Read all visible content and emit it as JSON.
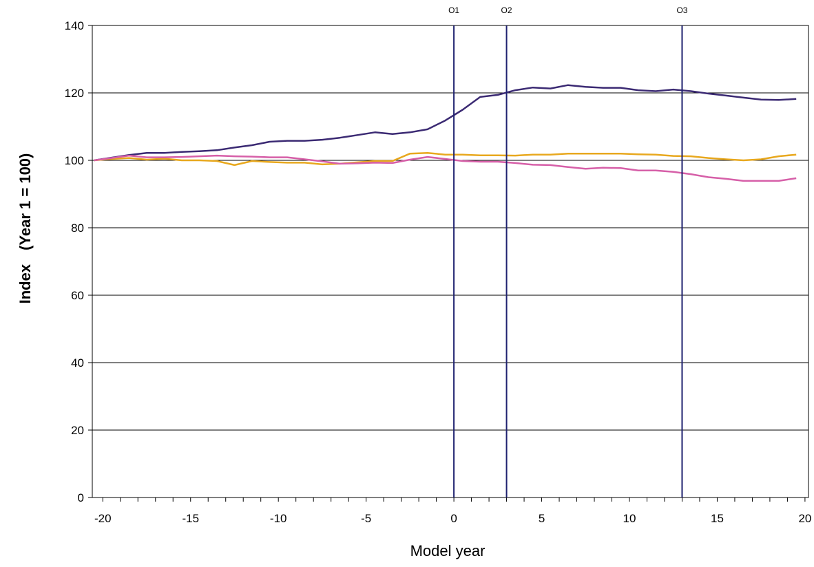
{
  "chart_data": {
    "type": "line",
    "title": "",
    "xlabel": "Model year",
    "ylabel_main": "Index",
    "ylabel_sub": "(Year 1 = 100)",
    "xlim": [
      -20.6,
      20.2
    ],
    "ylim": [
      0,
      140
    ],
    "x_ticks": [
      -20,
      -15,
      -10,
      -5,
      0,
      5,
      10,
      15,
      20
    ],
    "y_ticks": [
      0,
      20,
      40,
      60,
      80,
      100,
      120,
      140
    ],
    "grid": "horizontal",
    "legend": "none",
    "markers": [
      {
        "label": "O1",
        "x": 0
      },
      {
        "label": "O2",
        "x": 3
      },
      {
        "label": "O3",
        "x": 13
      }
    ],
    "marker_color": "#1f2270",
    "series": [
      {
        "color": "#3b2a73",
        "x": [
          -20.5,
          -19.5,
          -18.5,
          -17.5,
          -16.5,
          -15.5,
          -14.5,
          -13.5,
          -12.5,
          -11.5,
          -10.5,
          -9.5,
          -8.5,
          -7.5,
          -6.5,
          -5.5,
          -4.5,
          -3.5,
          -2.5,
          -1.5,
          -0.5,
          0.5,
          1.5,
          2.5,
          3.5,
          4.5,
          5.5,
          6.5,
          7.5,
          8.5,
          9.5,
          10.5,
          11.5,
          12.5,
          13.5,
          14.5,
          15.5,
          16.5,
          17.5,
          18.5,
          19.5
        ],
        "values": [
          100,
          100.8,
          101.6,
          102.2,
          102.2,
          102.5,
          102.7,
          103,
          103.8,
          104.5,
          105.5,
          105.8,
          105.8,
          106.1,
          106.7,
          107.5,
          108.3,
          107.8,
          108.3,
          109.2,
          111.8,
          115,
          118.8,
          119.4,
          120.8,
          121.6,
          121.3,
          122.3,
          121.8,
          121.5,
          121.5,
          120.8,
          120.5,
          121,
          120.5,
          119.8,
          119.2,
          118.6,
          118,
          117.9,
          118.2
        ]
      },
      {
        "color": "#e8a81e",
        "x": [
          -20.5,
          -19.5,
          -18.5,
          -17.5,
          -16.5,
          -15.5,
          -14.5,
          -13.5,
          -12.5,
          -11.5,
          -10.5,
          -9.5,
          -8.5,
          -7.5,
          -6.5,
          -5.5,
          -4.5,
          -3.5,
          -2.5,
          -1.5,
          -0.5,
          0.5,
          1.5,
          2.5,
          3.5,
          4.5,
          5.5,
          6.5,
          7.5,
          8.5,
          9.5,
          10.5,
          11.5,
          12.5,
          13.5,
          14.5,
          15.5,
          16.5,
          17.5,
          18.5,
          19.5
        ],
        "values": [
          100,
          100.4,
          100.7,
          100.2,
          100.5,
          100,
          100,
          99.8,
          98.6,
          99.8,
          99.5,
          99.3,
          99.3,
          98.8,
          99,
          99.4,
          99.8,
          99.8,
          102,
          102.2,
          101.7,
          101.7,
          101.5,
          101.5,
          101.4,
          101.7,
          101.7,
          102,
          102,
          102,
          102,
          101.8,
          101.7,
          101.3,
          101.2,
          100.7,
          100.3,
          100,
          100.3,
          101.2,
          101.7
        ]
      },
      {
        "color": "#d65fa8",
        "x": [
          -20.5,
          -19.5,
          -18.5,
          -17.5,
          -16.5,
          -15.5,
          -14.5,
          -13.5,
          -12.5,
          -11.5,
          -10.5,
          -9.5,
          -8.5,
          -7.5,
          -6.5,
          -5.5,
          -4.5,
          -3.5,
          -2.5,
          -1.5,
          -0.5,
          0.5,
          1.5,
          2.5,
          3.5,
          4.5,
          5.5,
          6.5,
          7.5,
          8.5,
          9.5,
          10.5,
          11.5,
          12.5,
          13.5,
          14.5,
          15.5,
          16.5,
          17.5,
          18.5,
          19.5
        ],
        "values": [
          100,
          100.7,
          101.4,
          100.9,
          100.9,
          101,
          101.2,
          101.4,
          101.2,
          101.1,
          100.9,
          100.9,
          100.3,
          99.7,
          99,
          99.1,
          99.3,
          99.2,
          100.2,
          101,
          100.4,
          99.8,
          99.6,
          99.6,
          99.2,
          98.7,
          98.6,
          98,
          97.5,
          97.8,
          97.7,
          97,
          97,
          96.6,
          95.9,
          95,
          94.5,
          93.9,
          93.9,
          93.9,
          94.7
        ]
      }
    ]
  }
}
